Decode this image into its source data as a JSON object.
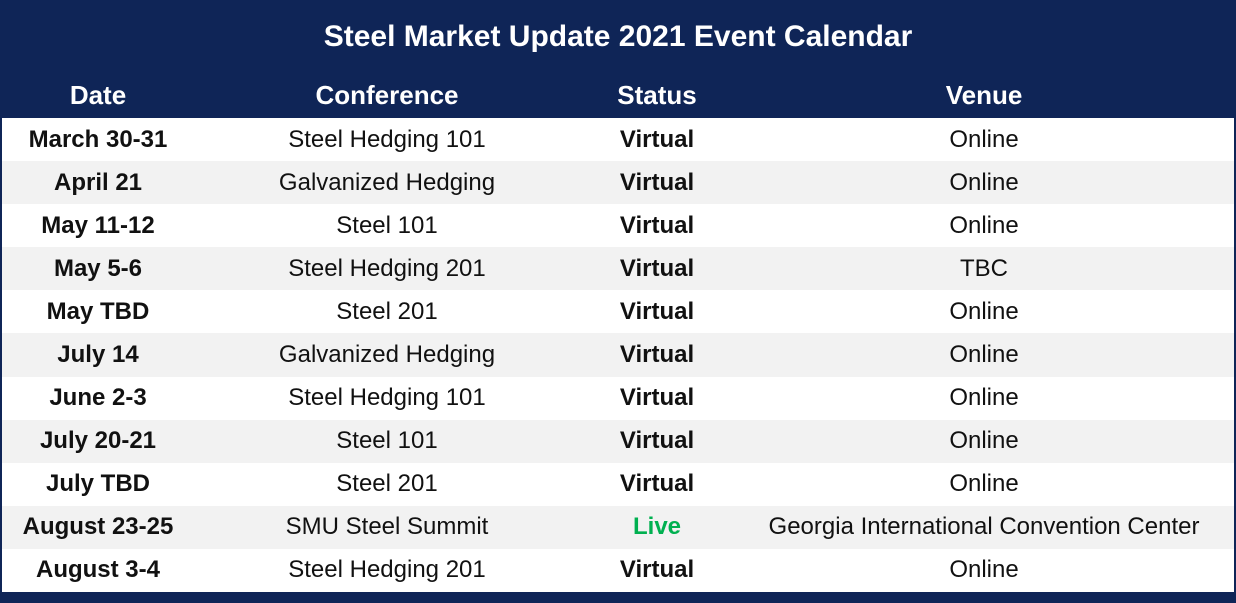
{
  "title": "Steel Market Update 2021 Event Calendar",
  "table": {
    "headers": [
      "Date",
      "Conference",
      "Status",
      "Venue"
    ],
    "rows": [
      {
        "date": "March 30-31",
        "conference": "Steel Hedging 101",
        "status": "Virtual",
        "venue": "Online"
      },
      {
        "date": "April 21",
        "conference": "Galvanized Hedging",
        "status": "Virtual",
        "venue": "Online"
      },
      {
        "date": "May 11-12",
        "conference": "Steel 101",
        "status": "Virtual",
        "venue": "Online"
      },
      {
        "date": "May 5-6",
        "conference": "Steel Hedging 201",
        "status": "Virtual",
        "venue": "TBC"
      },
      {
        "date": "May TBD",
        "conference": "Steel 201",
        "status": "Virtual",
        "venue": "Online"
      },
      {
        "date": "July 14",
        "conference": "Galvanized Hedging",
        "status": "Virtual",
        "venue": "Online"
      },
      {
        "date": "June 2-3",
        "conference": "Steel Hedging 101",
        "status": "Virtual",
        "venue": "Online"
      },
      {
        "date": "July 20-21",
        "conference": "Steel 101",
        "status": "Virtual",
        "venue": "Online"
      },
      {
        "date": "July TBD",
        "conference": "Steel 201",
        "status": "Virtual",
        "venue": "Online"
      },
      {
        "date": "August 23-25",
        "conference": "SMU Steel Summit",
        "status": "Live",
        "venue": "Georgia International Convention Center"
      },
      {
        "date": "August 3-4",
        "conference": "Steel Hedging 201",
        "status": "Virtual",
        "venue": "Online"
      }
    ]
  },
  "colors": {
    "navy": "#0F2557",
    "live_green": "#00B050",
    "row_alt": "#F2F2F2",
    "row_default": "#FFFFFF",
    "header_text": "#FFFFFF",
    "body_text": "#111111"
  },
  "chart_data": {
    "type": "table",
    "title": "Steel Market Update 2021 Event Calendar",
    "columns": [
      "Date",
      "Conference",
      "Status",
      "Venue"
    ],
    "rows": [
      [
        "March 30-31",
        "Steel Hedging 101",
        "Virtual",
        "Online"
      ],
      [
        "April 21",
        "Galvanized Hedging",
        "Virtual",
        "Online"
      ],
      [
        "May 11-12",
        "Steel 101",
        "Virtual",
        "Online"
      ],
      [
        "May 5-6",
        "Steel Hedging 201",
        "Virtual",
        "TBC"
      ],
      [
        "May TBD",
        "Steel 201",
        "Virtual",
        "Online"
      ],
      [
        "July 14",
        "Galvanized Hedging",
        "Virtual",
        "Online"
      ],
      [
        "June 2-3",
        "Steel Hedging 101",
        "Virtual",
        "Online"
      ],
      [
        "July 20-21",
        "Steel 101",
        "Virtual",
        "Online"
      ],
      [
        "July TBD",
        "Steel 201",
        "Virtual",
        "Online"
      ],
      [
        "August 23-25",
        "SMU Steel Summit",
        "Live",
        "Georgia International Convention Center"
      ],
      [
        "August 3-4",
        "Steel Hedging 201",
        "Virtual",
        "Online"
      ]
    ],
    "layout_hints": {
      "alternating_row_shading": true,
      "status_live_color": "#00B050",
      "header_background": "#0F2557"
    }
  }
}
